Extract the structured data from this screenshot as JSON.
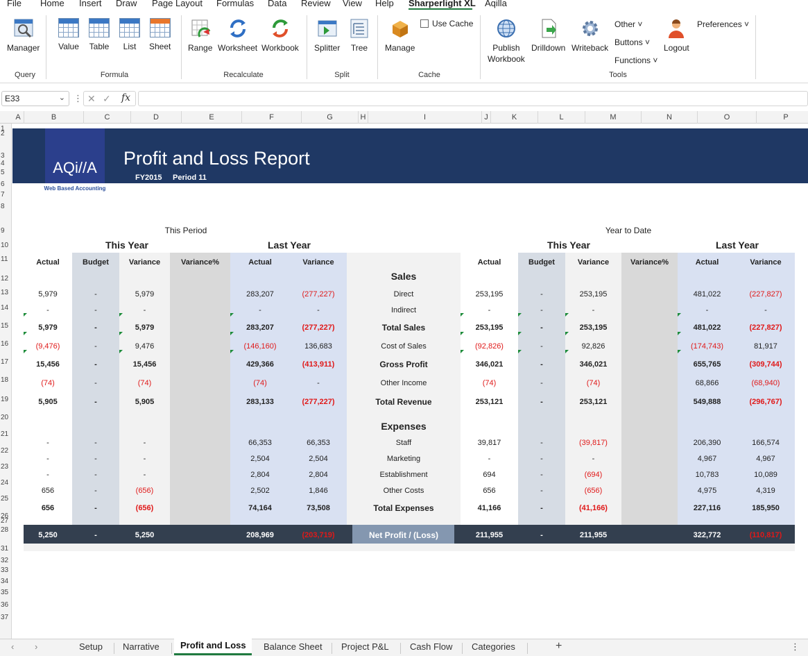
{
  "menu": [
    "File",
    "Home",
    "Insert",
    "Draw",
    "Page Layout",
    "Formulas",
    "Data",
    "Review",
    "View",
    "Help",
    "Sharperlight XL",
    "Aqilla"
  ],
  "ribbon": {
    "manager": "Manager",
    "value": "Value",
    "table": "Table",
    "list": "List",
    "sheet": "Sheet",
    "range": "Range",
    "worksheet": "Worksheet",
    "workbook": "Workbook",
    "splitter": "Splitter",
    "tree": "Tree",
    "use_cache": "Use Cache",
    "manage": "Manage",
    "publish1": "Publish",
    "publish2": "Workbook",
    "drilldown": "Drilldown",
    "writeback": "Writeback",
    "other": "Other ˅",
    "buttons": "Buttons ˅",
    "functions": "Functions ˅",
    "logout": "Logout",
    "preferences": "Preferences ˅",
    "groups": {
      "query": "Query",
      "formula": "Formula",
      "recalculate": "Recalculate",
      "split": "Split",
      "cache": "Cache",
      "tools": "Tools"
    }
  },
  "formula_bar": {
    "cell_ref": "E33",
    "fx": "fx",
    "formula": ""
  },
  "columns": [
    "A",
    "B",
    "C",
    "D",
    "E",
    "F",
    "G",
    "H",
    "I",
    "J",
    "K",
    "L",
    "M",
    "N",
    "O",
    "P"
  ],
  "rows": [
    "1",
    "2",
    "3",
    "4",
    "5",
    "6",
    "7",
    "8",
    "9",
    "10",
    "11",
    "12",
    "13",
    "14",
    "15",
    "16",
    "17",
    "18",
    "19",
    "20",
    "21",
    "22",
    "23",
    "24",
    "25",
    "26",
    "27",
    "28",
    "31",
    "32",
    "33",
    "34",
    "35",
    "36",
    "37"
  ],
  "report": {
    "logo_text": "AQi//A",
    "logo_tag": "Web Based Accounting",
    "title": "Profit and Loss Report",
    "fy": "FY2015",
    "period": "Period 11",
    "this_period": "This Period",
    "year_to_date": "Year to Date",
    "this_year": "This Year",
    "last_year": "Last Year",
    "col_actual": "Actual",
    "col_budget": "Budget",
    "col_variance": "Variance",
    "col_variance_pct": "Variance%",
    "sales": "Sales",
    "expenses": "Expenses",
    "net_profit": "Net Profit / (Loss)"
  },
  "lines": [
    {
      "label": "Direct",
      "tp_actual": "5,979",
      "tp_budget": "-",
      "tp_var": "5,979",
      "ly_actual": "283,207",
      "ly_var": "(277,227)",
      "ytd_actual": "253,195",
      "ytd_budget": "-",
      "ytd_var": "253,195",
      "ytd_ly_actual": "481,022",
      "ytd_ly_var": "(227,827)"
    },
    {
      "label": "Indirect",
      "tp_actual": "-",
      "tp_budget": "-",
      "tp_var": "-",
      "ly_actual": "-",
      "ly_var": "-",
      "ytd_actual": "-",
      "ytd_budget": "-",
      "ytd_var": "-",
      "ytd_ly_actual": "-",
      "ytd_ly_var": "-"
    },
    {
      "label": "Total Sales",
      "tp_actual": "5,979",
      "tp_budget": "-",
      "tp_var": "5,979",
      "ly_actual": "283,207",
      "ly_var": "(277,227)",
      "ytd_actual": "253,195",
      "ytd_budget": "-",
      "ytd_var": "253,195",
      "ytd_ly_actual": "481,022",
      "ytd_ly_var": "(227,827)"
    },
    {
      "label": "Cost of Sales",
      "tp_actual": "(9,476)",
      "tp_budget": "-",
      "tp_var": "9,476",
      "ly_actual": "(146,160)",
      "ly_var": "136,683",
      "ytd_actual": "(92,826)",
      "ytd_budget": "-",
      "ytd_var": "92,826",
      "ytd_ly_actual": "(174,743)",
      "ytd_ly_var": "81,917"
    },
    {
      "label": "Gross Profit",
      "tp_actual": "15,456",
      "tp_budget": "-",
      "tp_var": "15,456",
      "ly_actual": "429,366",
      "ly_var": "(413,911)",
      "ytd_actual": "346,021",
      "ytd_budget": "-",
      "ytd_var": "346,021",
      "ytd_ly_actual": "655,765",
      "ytd_ly_var": "(309,744)"
    },
    {
      "label": "Other Income",
      "tp_actual": "(74)",
      "tp_budget": "-",
      "tp_var": "(74)",
      "ly_actual": "(74)",
      "ly_var": "-",
      "ytd_actual": "(74)",
      "ytd_budget": "-",
      "ytd_var": "(74)",
      "ytd_ly_actual": "68,866",
      "ytd_ly_var": "(68,940)"
    },
    {
      "label": "Total Revenue",
      "tp_actual": "5,905",
      "tp_budget": "-",
      "tp_var": "5,905",
      "ly_actual": "283,133",
      "ly_var": "(277,227)",
      "ytd_actual": "253,121",
      "ytd_budget": "-",
      "ytd_var": "253,121",
      "ytd_ly_actual": "549,888",
      "ytd_ly_var": "(296,767)"
    },
    {
      "label": "Staff",
      "tp_actual": "-",
      "tp_budget": "-",
      "tp_var": "-",
      "ly_actual": "66,353",
      "ly_var": "66,353",
      "ytd_actual": "39,817",
      "ytd_budget": "-",
      "ytd_var": "(39,817)",
      "ytd_ly_actual": "206,390",
      "ytd_ly_var": "166,574"
    },
    {
      "label": "Marketing",
      "tp_actual": "-",
      "tp_budget": "-",
      "tp_var": "-",
      "ly_actual": "2,504",
      "ly_var": "2,504",
      "ytd_actual": "-",
      "ytd_budget": "-",
      "ytd_var": "-",
      "ytd_ly_actual": "4,967",
      "ytd_ly_var": "4,967"
    },
    {
      "label": "Establishment",
      "tp_actual": "-",
      "tp_budget": "-",
      "tp_var": "-",
      "ly_actual": "2,804",
      "ly_var": "2,804",
      "ytd_actual": "694",
      "ytd_budget": "-",
      "ytd_var": "(694)",
      "ytd_ly_actual": "10,783",
      "ytd_ly_var": "10,089"
    },
    {
      "label": "Other Costs",
      "tp_actual": "656",
      "tp_budget": "-",
      "tp_var": "(656)",
      "ly_actual": "2,502",
      "ly_var": "1,846",
      "ytd_actual": "656",
      "ytd_budget": "-",
      "ytd_var": "(656)",
      "ytd_ly_actual": "4,975",
      "ytd_ly_var": "4,319"
    },
    {
      "label": "Total Expenses",
      "tp_actual": "656",
      "tp_budget": "-",
      "tp_var": "(656)",
      "ly_actual": "74,164",
      "ly_var": "73,508",
      "ytd_actual": "41,166",
      "ytd_budget": "-",
      "ytd_var": "(41,166)",
      "ytd_ly_actual": "227,116",
      "ytd_ly_var": "185,950"
    },
    {
      "label": "Net Profit / (Loss)",
      "tp_actual": "5,250",
      "tp_budget": "-",
      "tp_var": "5,250",
      "ly_actual": "208,969",
      "ly_var": "(203,719)",
      "ytd_actual": "211,955",
      "ytd_budget": "-",
      "ytd_var": "211,955",
      "ytd_ly_actual": "322,772",
      "ytd_ly_var": "(110,817)"
    }
  ],
  "tabs": [
    "Setup",
    "Narrative",
    "Profit and Loss",
    "Balance Sheet",
    "Project P&L",
    "Cash Flow",
    "Categories"
  ],
  "colors": {
    "banner": "#1f3864",
    "navy_row": "#333f4f",
    "budget_shade": "#d6dce4",
    "ly_shade": "#d9e1f2",
    "label_shade": "#f2f2f2",
    "neg": "#e01919",
    "accent": "#1f7a3f"
  }
}
